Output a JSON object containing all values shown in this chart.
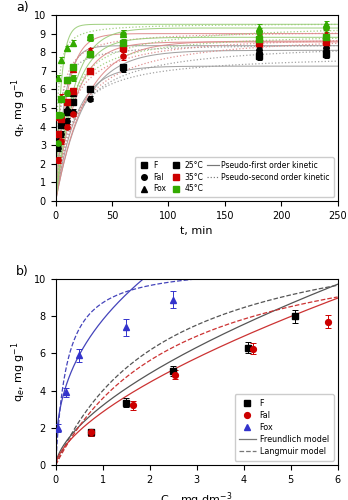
{
  "panel_a": {
    "xlabel": "t, min",
    "ylabel": "q$_t$, mg g$^{-1}$",
    "xlim": [
      0,
      250
    ],
    "ylim": [
      0,
      10
    ],
    "xticks": [
      0,
      50,
      100,
      150,
      200,
      250
    ],
    "yticks": [
      0,
      1,
      2,
      3,
      4,
      5,
      6,
      7,
      8,
      9,
      10
    ],
    "data": {
      "F_25": {
        "t": [
          2,
          5,
          10,
          15,
          30,
          60,
          180,
          240
        ],
        "q": [
          3.6,
          4.1,
          4.8,
          5.3,
          6.0,
          7.2,
          7.8,
          7.9
        ],
        "yerr": [
          0.15,
          0.15,
          0.15,
          0.15,
          0.15,
          0.15,
          0.2,
          0.2
        ],
        "marker": "s",
        "color": "#000000"
      },
      "Fal_25": {
        "t": [
          2,
          5,
          10,
          15,
          30,
          60,
          180,
          240
        ],
        "q": [
          2.85,
          3.6,
          4.3,
          4.8,
          5.5,
          7.1,
          8.0,
          8.1
        ],
        "yerr": [
          0.15,
          0.15,
          0.15,
          0.15,
          0.15,
          0.15,
          0.2,
          0.2
        ],
        "marker": "o",
        "color": "#000000"
      },
      "Fox_25": {
        "t": [
          2,
          5,
          10,
          15,
          30,
          60,
          180,
          240
        ],
        "q": [
          3.3,
          4.5,
          5.0,
          5.8,
          7.9,
          8.3,
          8.3,
          8.4
        ],
        "yerr": [
          0.15,
          0.15,
          0.15,
          0.15,
          0.15,
          0.15,
          0.2,
          0.2
        ],
        "marker": "^",
        "color": "#000000"
      },
      "F_35": {
        "t": [
          2,
          5,
          10,
          15,
          30,
          60,
          180,
          240
        ],
        "q": [
          3.6,
          4.4,
          5.3,
          5.9,
          7.0,
          8.2,
          8.5,
          8.55
        ],
        "yerr": [
          0.15,
          0.15,
          0.15,
          0.15,
          0.15,
          0.2,
          0.2,
          0.2
        ],
        "marker": "s",
        "color": "#cc0000"
      },
      "Fal_35": {
        "t": [
          2,
          5,
          10,
          15,
          30,
          60,
          180,
          240
        ],
        "q": [
          2.2,
          3.2,
          4.0,
          4.7,
          7.0,
          7.8,
          8.5,
          8.6
        ],
        "yerr": [
          0.15,
          0.15,
          0.15,
          0.15,
          0.15,
          0.2,
          0.2,
          0.2
        ],
        "marker": "o",
        "color": "#cc0000"
      },
      "Fox_35": {
        "t": [
          2,
          5,
          10,
          15,
          30,
          60,
          180,
          240
        ],
        "q": [
          4.5,
          5.6,
          6.5,
          7.1,
          8.1,
          8.4,
          8.8,
          9.0
        ],
        "yerr": [
          0.15,
          0.15,
          0.15,
          0.15,
          0.15,
          0.2,
          0.2,
          0.2
        ],
        "marker": "^",
        "color": "#cc0000"
      },
      "F_45": {
        "t": [
          2,
          5,
          10,
          15,
          30,
          60,
          180,
          240
        ],
        "q": [
          4.6,
          5.5,
          6.5,
          7.2,
          7.9,
          8.5,
          8.7,
          8.8
        ],
        "yerr": [
          0.15,
          0.15,
          0.15,
          0.15,
          0.15,
          0.2,
          0.2,
          0.2
        ],
        "marker": "s",
        "color": "#33aa00"
      },
      "Fal_45": {
        "t": [
          2,
          5,
          10,
          15,
          30,
          60,
          180,
          240
        ],
        "q": [
          3.1,
          4.6,
          5.8,
          6.6,
          8.8,
          9.0,
          9.1,
          9.3
        ],
        "yerr": [
          0.15,
          0.15,
          0.15,
          0.15,
          0.2,
          0.2,
          0.2,
          0.2
        ],
        "marker": "o",
        "color": "#33aa00"
      },
      "Fox_45": {
        "t": [
          2,
          5,
          10,
          15,
          30,
          60,
          180,
          240
        ],
        "q": [
          6.6,
          7.6,
          8.2,
          8.5,
          8.8,
          9.0,
          9.3,
          9.5
        ],
        "yerr": [
          0.15,
          0.15,
          0.15,
          0.15,
          0.15,
          0.2,
          0.2,
          0.2
        ],
        "marker": "^",
        "color": "#33aa00"
      }
    },
    "fit_params": {
      "F_25_pfo": {
        "qe": 7.25,
        "k1": 0.055
      },
      "F_25_pso": {
        "qe": 7.9,
        "k2": 0.01
      },
      "Fal_25_pfo": {
        "qe": 8.1,
        "k1": 0.04
      },
      "Fal_25_pso": {
        "qe": 8.6,
        "k2": 0.007
      },
      "Fox_25_pfo": {
        "qe": 8.35,
        "k1": 0.13
      },
      "Fox_25_pso": {
        "qe": 8.45,
        "k2": 0.04
      },
      "F_35_pfo": {
        "qe": 8.55,
        "k1": 0.058
      },
      "F_35_pso": {
        "qe": 9.0,
        "k2": 0.01
      },
      "Fal_35_pfo": {
        "qe": 8.6,
        "k1": 0.038
      },
      "Fal_35_pso": {
        "qe": 9.1,
        "k2": 0.006
      },
      "Fox_35_pfo": {
        "qe": 9.0,
        "k1": 0.1
      },
      "Fox_35_pso": {
        "qe": 9.15,
        "k2": 0.03
      },
      "F_45_pfo": {
        "qe": 8.8,
        "k1": 0.062
      },
      "F_45_pso": {
        "qe": 9.1,
        "k2": 0.011
      },
      "Fal_45_pfo": {
        "qe": 9.3,
        "k1": 0.065
      },
      "Fal_45_pso": {
        "qe": 9.55,
        "k2": 0.01
      },
      "Fox_45_pfo": {
        "qe": 9.5,
        "k1": 0.22
      },
      "Fox_45_pso": {
        "qe": 9.55,
        "k2": 0.07
      }
    },
    "fit_colors": {
      "25": "#999999",
      "35": "#dd8888",
      "45": "#99cc77"
    }
  },
  "panel_b": {
    "xlabel": "C$_e$, mg dm$^{-3}$",
    "ylabel": "q$_e$, mg g$^{-1}$",
    "xlim": [
      0,
      6
    ],
    "ylim": [
      0,
      10
    ],
    "xticks": [
      0,
      1,
      2,
      3,
      4,
      5,
      6
    ],
    "yticks": [
      0,
      2,
      4,
      6,
      8,
      10
    ],
    "data": {
      "F": {
        "Ce": [
          0.75,
          1.5,
          2.5,
          4.1,
          5.1
        ],
        "qe": [
          1.75,
          3.35,
          5.05,
          6.3,
          8.0
        ],
        "yerr": [
          0.2,
          0.25,
          0.25,
          0.3,
          0.35
        ],
        "marker": "s",
        "color": "#000000"
      },
      "Fal": {
        "Ce": [
          0.75,
          1.65,
          2.55,
          4.2,
          5.8
        ],
        "qe": [
          1.75,
          3.2,
          4.85,
          6.25,
          7.7
        ],
        "yerr": [
          0.2,
          0.25,
          0.25,
          0.3,
          0.35
        ],
        "marker": "o",
        "color": "#cc0000"
      },
      "Fox": {
        "Ce": [
          0.05,
          0.22,
          0.5,
          1.5,
          2.5
        ],
        "qe": [
          2.0,
          3.9,
          5.9,
          7.4,
          8.9
        ],
        "yerr": [
          0.2,
          0.25,
          0.35,
          0.45,
          0.45
        ],
        "marker": "^",
        "color": "#3333cc"
      }
    },
    "freundlich": {
      "F": {
        "Kf": 3.2,
        "n": 0.62
      },
      "Fal": {
        "Kf": 2.85,
        "n": 0.64
      },
      "Fox": {
        "Kf": 7.8,
        "n": 0.4
      }
    },
    "langmuir": {
      "F": {
        "qmax": 13.5,
        "KL": 0.42
      },
      "Fal": {
        "qmax": 13.0,
        "KL": 0.38
      },
      "Fox": {
        "qmax": 10.8,
        "KL": 4.2
      }
    },
    "fit_colors": {
      "F": "#555555",
      "Fal": "#cc3333",
      "Fox": "#4444bb"
    }
  }
}
